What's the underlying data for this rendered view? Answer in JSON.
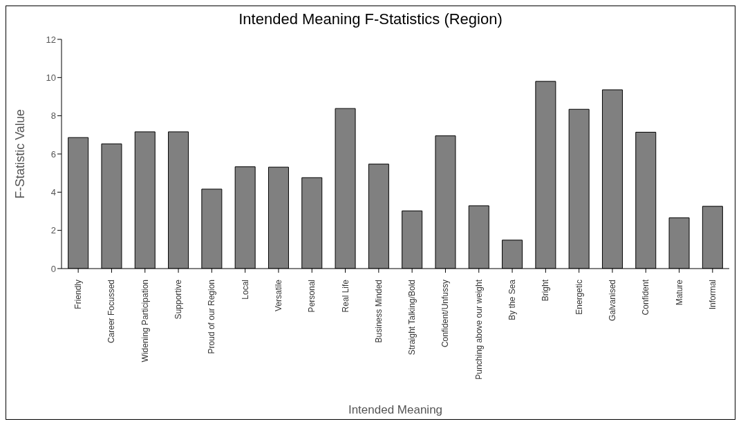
{
  "chart_data": {
    "type": "bar",
    "title": "Intended Meaning F-Statistics (Region)",
    "xlabel": "Intended Meaning",
    "ylabel": "F-Statistic Value",
    "categories": [
      "Friendly",
      "Career Focussed",
      "Widening Participation",
      "Supportive",
      "Proud of our Region",
      "Local",
      "Versatile",
      "Personal",
      "Real Life",
      "Business Minded",
      "Straight Talking/Bold",
      "Confident/Unfussy",
      "Punching above our weight",
      "By the Sea",
      "Bright",
      "Energetic",
      "Galvanised",
      "Confident",
      "Mature",
      "Informal"
    ],
    "values": [
      6.86,
      6.53,
      7.16,
      7.16,
      4.16,
      5.33,
      5.31,
      4.76,
      8.38,
      5.47,
      3.02,
      6.95,
      3.29,
      1.49,
      9.8,
      8.34,
      9.36,
      7.14,
      2.66,
      3.26
    ],
    "color": "#808080",
    "ylim": [
      0,
      12
    ],
    "yticks": [
      0,
      2,
      4,
      6,
      8,
      10,
      12
    ],
    "grid": false,
    "legend": false
  }
}
